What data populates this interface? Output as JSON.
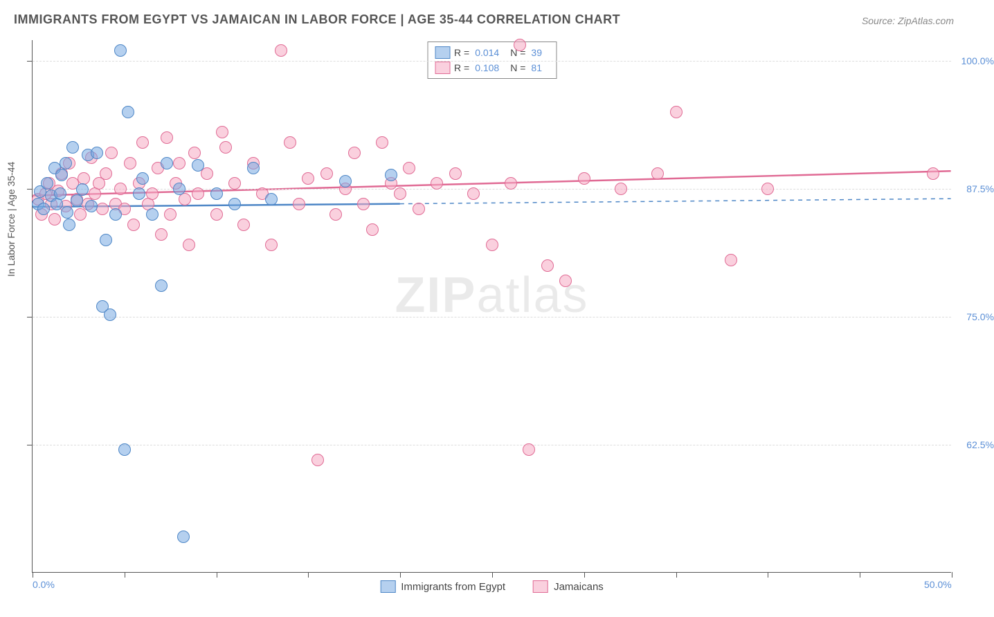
{
  "title": "IMMIGRANTS FROM EGYPT VS JAMAICAN IN LABOR FORCE | AGE 35-44 CORRELATION CHART",
  "source": "Source: ZipAtlas.com",
  "watermark_bold": "ZIP",
  "watermark_thin": "atlas",
  "ylabel": "In Labor Force | Age 35-44",
  "colors": {
    "blue_fill": "rgba(120,170,225,0.55)",
    "blue_stroke": "#4d86c6",
    "pink_fill": "rgba(245,170,195,0.55)",
    "pink_stroke": "#e06a94",
    "axis_text": "#5b8fd6"
  },
  "chart": {
    "type": "scatter",
    "xlim": [
      0,
      50
    ],
    "ylim": [
      50,
      102
    ],
    "ytick_vals": [
      62.5,
      75.0,
      87.5,
      100.0
    ],
    "ytick_labels": [
      "62.5%",
      "75.0%",
      "87.5%",
      "100.0%"
    ],
    "xtick_vals": [
      0,
      5,
      10,
      15,
      20,
      25,
      30,
      35,
      40,
      45,
      50
    ],
    "x_end_labels": {
      "min": "0.0%",
      "max": "50.0%"
    },
    "marker_radius": 8,
    "marker_stroke_width": 1.2,
    "grid_color": "#dddddd",
    "background": "#ffffff"
  },
  "legend_top": {
    "rows": [
      {
        "swatch": "blue",
        "r_label": "R =",
        "r_val": "0.014",
        "n_label": "N =",
        "n_val": "39"
      },
      {
        "swatch": "pink",
        "r_label": "R =",
        "r_val": "0.108",
        "n_label": "N =",
        "n_val": "81"
      }
    ]
  },
  "legend_bottom": [
    {
      "swatch": "blue",
      "label": "Immigrants from Egypt"
    },
    {
      "swatch": "pink",
      "label": "Jamaicans"
    }
  ],
  "series": {
    "egypt": {
      "color_fill": "rgba(120,170,225,0.55)",
      "color_stroke": "#4d86c6",
      "trend": {
        "x1": 0,
        "y1": 85.7,
        "x2": 20,
        "y2": 86.0,
        "dash_x2": 50,
        "dash_y2": 86.5,
        "stroke_width": 2.5
      },
      "points": [
        [
          0.3,
          86.0
        ],
        [
          0.4,
          87.2
        ],
        [
          0.6,
          85.5
        ],
        [
          0.8,
          88.0
        ],
        [
          1.0,
          86.8
        ],
        [
          1.2,
          89.5
        ],
        [
          1.3,
          86.0
        ],
        [
          1.5,
          87.0
        ],
        [
          1.6,
          88.8
        ],
        [
          1.8,
          90.0
        ],
        [
          1.9,
          85.2
        ],
        [
          2.0,
          84.0
        ],
        [
          2.2,
          91.5
        ],
        [
          2.4,
          86.3
        ],
        [
          2.7,
          87.4
        ],
        [
          3.0,
          90.8
        ],
        [
          3.2,
          85.8
        ],
        [
          3.5,
          91.0
        ],
        [
          3.8,
          76.0
        ],
        [
          4.0,
          82.5
        ],
        [
          4.2,
          75.2
        ],
        [
          4.5,
          85.0
        ],
        [
          4.8,
          101.0
        ],
        [
          5.0,
          62.0
        ],
        [
          5.2,
          95.0
        ],
        [
          5.8,
          87.0
        ],
        [
          6.0,
          88.5
        ],
        [
          6.5,
          85.0
        ],
        [
          7.0,
          78.0
        ],
        [
          7.3,
          90.0
        ],
        [
          8.0,
          87.5
        ],
        [
          8.2,
          53.5
        ],
        [
          9.0,
          89.8
        ],
        [
          10.0,
          87.0
        ],
        [
          11.0,
          86.0
        ],
        [
          12.0,
          89.5
        ],
        [
          13.0,
          86.5
        ],
        [
          17.0,
          88.2
        ],
        [
          19.5,
          88.8
        ]
      ]
    },
    "jamaicans": {
      "color_fill": "rgba(245,170,195,0.55)",
      "color_stroke": "#e06a94",
      "trend": {
        "x1": 0,
        "y1": 86.8,
        "x2": 50,
        "y2": 89.2,
        "stroke_width": 2.5
      },
      "points": [
        [
          0.3,
          86.5
        ],
        [
          0.5,
          85.0
        ],
        [
          0.7,
          87.0
        ],
        [
          0.9,
          88.0
        ],
        [
          1.0,
          86.0
        ],
        [
          1.2,
          84.5
        ],
        [
          1.4,
          87.3
        ],
        [
          1.6,
          89.0
        ],
        [
          1.8,
          85.8
        ],
        [
          2.0,
          90.0
        ],
        [
          2.2,
          88.0
        ],
        [
          2.4,
          86.5
        ],
        [
          2.6,
          85.0
        ],
        [
          2.8,
          88.5
        ],
        [
          3.0,
          86.0
        ],
        [
          3.2,
          90.5
        ],
        [
          3.4,
          87.0
        ],
        [
          3.6,
          88.0
        ],
        [
          3.8,
          85.5
        ],
        [
          4.0,
          89.0
        ],
        [
          4.3,
          91.0
        ],
        [
          4.5,
          86.0
        ],
        [
          4.8,
          87.5
        ],
        [
          5.0,
          85.5
        ],
        [
          5.3,
          90.0
        ],
        [
          5.5,
          84.0
        ],
        [
          5.8,
          88.0
        ],
        [
          6.0,
          92.0
        ],
        [
          6.3,
          86.0
        ],
        [
          6.5,
          87.0
        ],
        [
          6.8,
          89.5
        ],
        [
          7.0,
          83.0
        ],
        [
          7.3,
          92.5
        ],
        [
          7.5,
          85.0
        ],
        [
          7.8,
          88.0
        ],
        [
          8.0,
          90.0
        ],
        [
          8.3,
          86.5
        ],
        [
          8.5,
          82.0
        ],
        [
          8.8,
          91.0
        ],
        [
          9.0,
          87.0
        ],
        [
          9.5,
          89.0
        ],
        [
          10.0,
          85.0
        ],
        [
          10.3,
          93.0
        ],
        [
          10.5,
          91.5
        ],
        [
          11.0,
          88.0
        ],
        [
          11.5,
          84.0
        ],
        [
          12.0,
          90.0
        ],
        [
          12.5,
          87.0
        ],
        [
          13.0,
          82.0
        ],
        [
          13.5,
          101.0
        ],
        [
          14.0,
          92.0
        ],
        [
          14.5,
          86.0
        ],
        [
          15.0,
          88.5
        ],
        [
          15.5,
          61.0
        ],
        [
          16.0,
          89.0
        ],
        [
          16.5,
          85.0
        ],
        [
          17.0,
          87.5
        ],
        [
          17.5,
          91.0
        ],
        [
          18.0,
          86.0
        ],
        [
          18.5,
          83.5
        ],
        [
          19.0,
          92.0
        ],
        [
          19.5,
          88.0
        ],
        [
          20.0,
          87.0
        ],
        [
          20.5,
          89.5
        ],
        [
          21.0,
          85.5
        ],
        [
          22.0,
          88.0
        ],
        [
          23.0,
          89.0
        ],
        [
          24.0,
          87.0
        ],
        [
          25.0,
          82.0
        ],
        [
          26.0,
          88.0
        ],
        [
          26.5,
          101.5
        ],
        [
          27.0,
          62.0
        ],
        [
          28.0,
          80.0
        ],
        [
          29.0,
          78.5
        ],
        [
          30.0,
          88.5
        ],
        [
          32.0,
          87.5
        ],
        [
          34.0,
          89.0
        ],
        [
          35.0,
          95.0
        ],
        [
          38.0,
          80.5
        ],
        [
          40.0,
          87.5
        ],
        [
          49.0,
          89.0
        ]
      ]
    }
  }
}
